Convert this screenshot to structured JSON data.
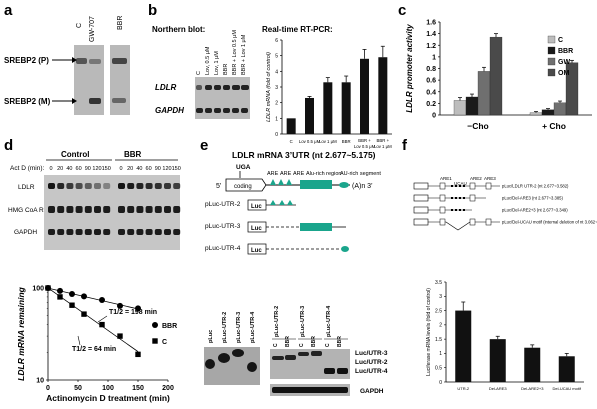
{
  "panels": {
    "a": {
      "label": "a",
      "lanes": [
        "C",
        "GW-707",
        "BBR"
      ],
      "bands": [
        "SREBP2 (P)",
        "SREBP2 (M)"
      ]
    },
    "b": {
      "label": "b",
      "northern_title": "Northern blot:",
      "rtpcr_title": "Real-time RT-PCR:",
      "northern_lanes": [
        "C",
        "Lov, 0.5 μM",
        "Lov, 1 μM",
        "BBR",
        "BBR + Lov 0.5 μM",
        "BBR + Lov 1 μM"
      ],
      "northern_rows": [
        "LDLR",
        "GAPDH"
      ]
    },
    "c": {
      "label": "c",
      "legend": [
        "C",
        "BBR",
        "GW",
        "OM"
      ],
      "legend_colors": [
        "#bdbdbd",
        "#1a1a1a",
        "#6f6f6f",
        "#4a4a4a"
      ]
    },
    "d": {
      "label": "d",
      "group_labels": [
        "Control",
        "BBR"
      ],
      "actd_label": "Act D (min):",
      "timepoints": [
        "0",
        "20",
        "40",
        "60",
        "90",
        "120",
        "150"
      ],
      "rows": [
        "LDLR",
        "HMG CoA R",
        "GAPDH"
      ],
      "annot_bbr": "T1/2 = 198 min",
      "annot_c": "T1/2 = 64 min",
      "legend": [
        "BBR",
        "C"
      ]
    },
    "e": {
      "label": "e",
      "title": "LDLR mRNA 3’UTR (nt 2.677~5.175)",
      "uga": "UGA",
      "five": "5’",
      "coding": "coding",
      "are": "ARE",
      "alu": "Alu-rich region",
      "au": "AU-rich segment",
      "polya": "(A)n 3’",
      "constructs": [
        "pLuc-UTR-2",
        "pLuc-UTR-3",
        "pLuc-UTR-4"
      ],
      "luc": "Luc",
      "blot1_lanes": [
        "pLuc",
        "pLuc-UTR-2",
        "pLuc-UTR-3",
        "pLuc-UTR-4"
      ],
      "blot2_lanes": [
        "pLuc-UTR-2",
        "pLuc-UTR-3",
        "pLuc-UTR-4"
      ],
      "blot2_sub": [
        "C",
        "BBR"
      ],
      "band_labels": [
        "Luc/UTR-3",
        "Luc/UTR-2",
        "Luc/UTR-4"
      ],
      "gapdh": "GAPDH"
    },
    "f": {
      "label": "f",
      "are_labels": [
        "ARE1",
        "UCAU",
        "ARE2",
        "ARE3"
      ],
      "constructs": [
        "pLuc/LDLR UTR-2 (nt 2.677~3.582)",
        "pLuc/Del-ARE3 (nt 2.677~3.385)",
        "pLuc/Del-ARE2+3 (nt 2.677~3.349)",
        "pLuc/Del-UCAU motif (internal deletion of nt 3.062~3.124)"
      ]
    }
  },
  "chart_data": [
    {
      "id": "b-rtpcr",
      "type": "bar",
      "categories": [
        "C",
        "Lov 0.5 μM",
        "Lov 1 μM",
        "BBR",
        "BBR + Lov 0.5 μM",
        "BBR + Lov 1 μM"
      ],
      "values": [
        1.0,
        2.3,
        3.3,
        3.3,
        4.8,
        4.9
      ],
      "errors": [
        0.0,
        0.1,
        0.3,
        0.4,
        0.6,
        0.7
      ],
      "ylabel": "LDLR mRNA (fold of control)",
      "ylim": [
        0,
        6
      ],
      "yticks": [
        0,
        1,
        2,
        3,
        4,
        5,
        6
      ]
    },
    {
      "id": "c",
      "type": "bar",
      "groups": [
        "−Cho",
        "+ Cho"
      ],
      "series": [
        {
          "name": "C",
          "values": [
            0.25,
            0.04
          ],
          "errors": [
            0.05,
            0.02
          ]
        },
        {
          "name": "BBR",
          "values": [
            0.31,
            0.09
          ],
          "errors": [
            0.05,
            0.02
          ]
        },
        {
          "name": "GW",
          "values": [
            0.75,
            0.21
          ],
          "errors": [
            0.07,
            0.03
          ]
        },
        {
          "name": "OM",
          "values": [
            1.34,
            0.9
          ],
          "errors": [
            0.06,
            0.04
          ]
        }
      ],
      "ylabel": "LDLR promoter activity",
      "ylim": [
        0,
        1.6
      ],
      "yticks": [
        "0",
        "0.2",
        "0.4",
        "0.6",
        "0.8",
        "1",
        "1.2",
        "1.4",
        "1.6"
      ]
    },
    {
      "id": "d-decay",
      "type": "scatter",
      "ylog": true,
      "xlabel": "Actinomycin D treatment (min)",
      "ylabel": "LDLR mRNA remaining",
      "xlim": [
        0,
        200
      ],
      "xticks": [
        0,
        50,
        100,
        150,
        200
      ],
      "ylim": [
        10,
        100
      ],
      "yticks": [
        10,
        100
      ],
      "series": [
        {
          "name": "BBR",
          "marker": "circle",
          "x": [
            0,
            20,
            40,
            60,
            90,
            120,
            150
          ],
          "y": [
            100,
            93,
            86,
            81,
            74,
            64,
            60
          ]
        },
        {
          "name": "C",
          "marker": "square",
          "x": [
            0,
            20,
            40,
            60,
            90,
            120,
            150
          ],
          "y": [
            100,
            80,
            65,
            52,
            40,
            30,
            19
          ]
        }
      ]
    },
    {
      "id": "f-luciferase",
      "type": "bar",
      "categories": [
        "UTR-2",
        "Del-ARE3",
        "Del-ARE2+3",
        "Del-UCAU motif"
      ],
      "values": [
        2.5,
        1.5,
        1.2,
        0.9
      ],
      "errors": [
        0.3,
        0.1,
        0.1,
        0.1
      ],
      "ylabel": "Luciferase mRNA levels (fold of control)",
      "ylim": [
        0,
        3.5
      ],
      "yticks": [
        "0",
        "0.5",
        "1",
        "1.5",
        "2",
        "2.5",
        "3",
        "3.5"
      ]
    }
  ]
}
